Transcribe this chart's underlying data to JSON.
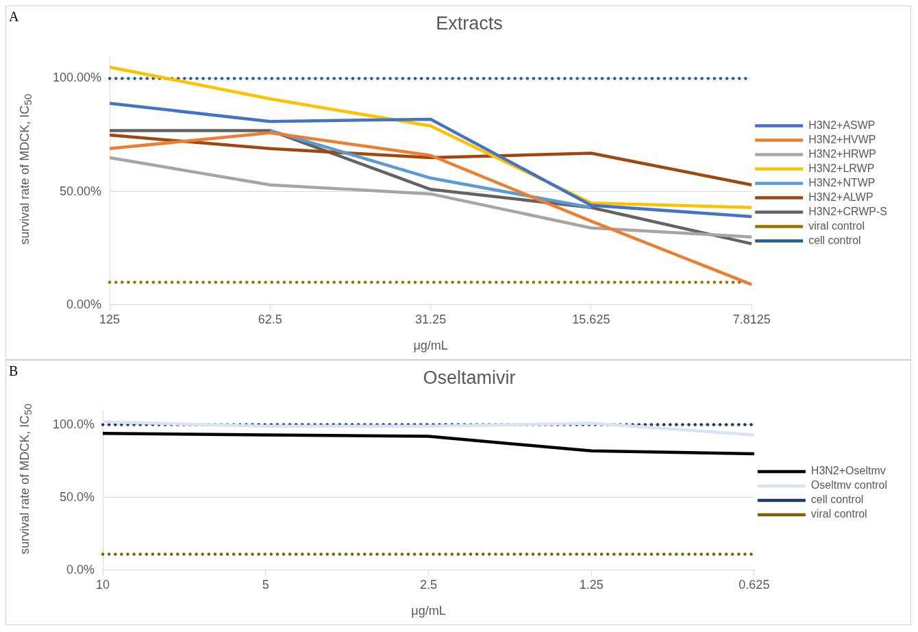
{
  "chart_data": [
    {
      "type": "line",
      "title": "Extracts",
      "annotations": [
        "A"
      ],
      "xlabel": "μg/mL",
      "ylabel": "survival rate of MDCK, IC$_{50}$",
      "categories": [
        "125",
        "62.5",
        "31.25",
        "15.625",
        "7.8125"
      ],
      "ylim": [
        0,
        110
      ],
      "yticks": [
        {
          "value": 0,
          "label": "0.00%"
        },
        {
          "value": 50,
          "label": "50.00%"
        },
        {
          "value": 100,
          "label": "100.00%"
        }
      ],
      "grid": "y",
      "legend": "right",
      "marker": "none",
      "line_style": "solid",
      "series": [
        {
          "name": "H3N2+ASWP",
          "color": "#4472c4",
          "values": [
            89,
            81,
            82,
            44,
            39
          ]
        },
        {
          "name": "H3N2+HVWP",
          "color": "#ed7d31",
          "values": [
            69,
            76,
            66,
            37,
            9
          ]
        },
        {
          "name": "H3N2+HRWP",
          "color": "#a5a5a5",
          "values": [
            65,
            53,
            49,
            34,
            30
          ]
        },
        {
          "name": "H3N2+LRWP",
          "color": "#ffc000",
          "values": [
            105,
            91,
            79,
            45,
            43
          ]
        },
        {
          "name": "H3N2+NTWP",
          "color": "#5b9bd5",
          "values": [
            null,
            77,
            56,
            43,
            null
          ]
        },
        {
          "name": "H3N2+ALWP",
          "color": "#9e480e",
          "values": [
            75,
            69,
            65,
            67,
            53
          ]
        },
        {
          "name": "H3N2+CRWP-S",
          "color": "#636363",
          "values": [
            77,
            77,
            51,
            43,
            27
          ]
        },
        {
          "name": "viral control",
          "color": "#997300",
          "line_style": "dotted",
          "values": [
            10,
            10,
            10,
            10,
            10
          ]
        },
        {
          "name": "cell control",
          "color": "#255e91",
          "line_style": "dotted",
          "values": [
            100,
            100,
            100,
            100,
            100
          ]
        }
      ]
    },
    {
      "type": "line",
      "title": "Oseltamivir",
      "annotations": [
        "B"
      ],
      "xlabel": "μg/mL",
      "ylabel": "survival rate of MDCK, IC$_{50}$",
      "categories": [
        "10",
        "5",
        "2.5",
        "1.25",
        "0.625"
      ],
      "ylim": [
        0,
        110
      ],
      "yticks": [
        {
          "value": 0,
          "label": "0.0%"
        },
        {
          "value": 50,
          "label": "50.0%"
        },
        {
          "value": 100,
          "label": "100.0%"
        }
      ],
      "grid": "y",
      "legend": "right",
      "marker": "none",
      "line_style": "solid",
      "series": [
        {
          "name": "H3N2+Oseltmv",
          "color": "#000000",
          "values": [
            94,
            93,
            92,
            82,
            80
          ]
        },
        {
          "name": "Oseltmv control",
          "color": "#dae3f3",
          "values": [
            102,
            99,
            99,
            101,
            93
          ]
        },
        {
          "name": "cell control",
          "color": "#203864",
          "line_style": "dotted",
          "values": [
            100,
            100,
            100,
            100,
            100
          ]
        },
        {
          "name": "viral control",
          "color": "#7f6000",
          "line_style": "dotted",
          "values": [
            11,
            11,
            11,
            11,
            11
          ]
        }
      ]
    }
  ]
}
